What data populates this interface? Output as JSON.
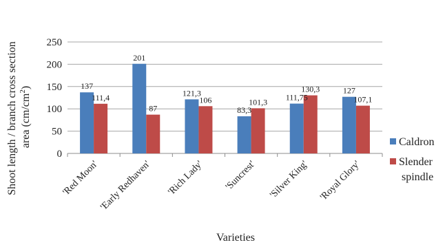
{
  "chart_data": {
    "type": "bar",
    "title": "",
    "xlabel": "Varieties",
    "ylabel_line1": "Shoot length / branch cross section",
    "ylabel_line2_prefix": "area (cm/cm",
    "ylabel_line2_sup": "2",
    "ylabel_line2_suffix": ")",
    "ylim": [
      0,
      250
    ],
    "yticks": [
      0,
      50,
      100,
      150,
      200,
      250
    ],
    "grid": true,
    "legend_position": "right",
    "categories": [
      "'Red Moon'",
      "'Early Redhaven'",
      "'Rich Lady'",
      "'Suncrest'",
      "'Silver King'",
      "'Royal Glory'"
    ],
    "series": [
      {
        "name": "Caldron",
        "color": "#4a7ebb",
        "values": [
          137,
          201,
          121.3,
          83.3,
          111.75,
          127
        ],
        "labels": [
          "137",
          "201",
          "121,3",
          "83,3",
          "111,75",
          "127"
        ]
      },
      {
        "name": "Slender spindle",
        "name_line1": "Slender",
        "name_line2": "spindle",
        "color": "#be4b48",
        "values": [
          111.4,
          87,
          106,
          101.3,
          130.3,
          107.1
        ],
        "labels": [
          "111,4",
          "87",
          "106",
          "101,3",
          "130,3",
          "107,1"
        ]
      }
    ]
  }
}
